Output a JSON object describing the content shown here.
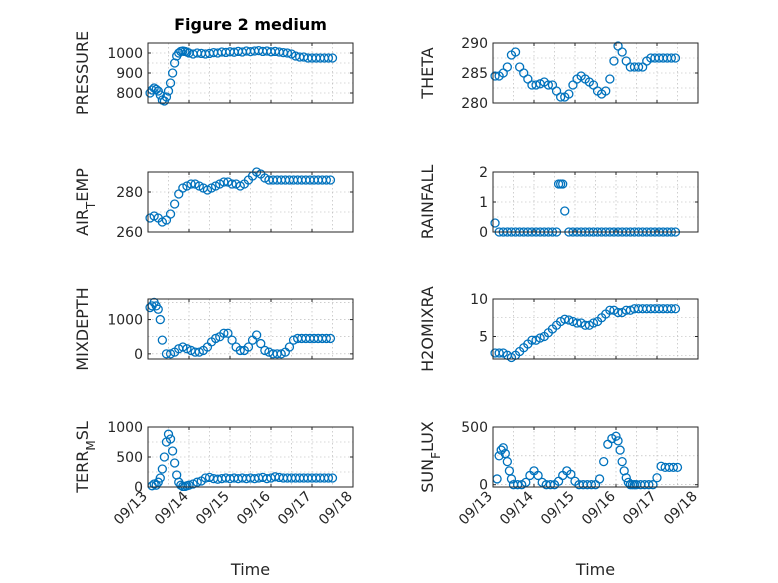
{
  "figure_title": "Figure 2 medium",
  "colors": {
    "marker": "#0072bd",
    "axis": "#262626",
    "grid": "#b0b0b0"
  },
  "chart_data": [
    {
      "type": "scatter",
      "title": "Figure 2 medium",
      "ylabel": "PRESSURE",
      "xlabel": "",
      "xlim": [
        0,
        5
      ],
      "ylim": [
        750,
        1050
      ],
      "yticks": [
        800,
        900,
        1000
      ],
      "ytick_labels": [
        "800",
        "900",
        "1000"
      ],
      "x": [
        0.05,
        0.1,
        0.15,
        0.2,
        0.25,
        0.3,
        0.35,
        0.4,
        0.45,
        0.5,
        0.55,
        0.6,
        0.65,
        0.7,
        0.75,
        0.8,
        0.85,
        0.9,
        0.95,
        1.0,
        1.1,
        1.2,
        1.3,
        1.4,
        1.5,
        1.6,
        1.7,
        1.8,
        1.9,
        2.0,
        2.1,
        2.2,
        2.3,
        2.4,
        2.5,
        2.6,
        2.7,
        2.8,
        2.9,
        3.0,
        3.1,
        3.2,
        3.3,
        3.4,
        3.5,
        3.6,
        3.7,
        3.8,
        3.9,
        4.0,
        4.1,
        4.2,
        4.3,
        4.4,
        4.5
      ],
      "y": [
        800,
        815,
        825,
        818,
        810,
        790,
        765,
        760,
        780,
        810,
        850,
        900,
        950,
        985,
        1000,
        1008,
        1010,
        1008,
        1005,
        1000,
        995,
        1000,
        998,
        995,
        998,
        1002,
        1000,
        1005,
        1003,
        1006,
        1004,
        1008,
        1005,
        1010,
        1007,
        1010,
        1012,
        1008,
        1010,
        1006,
        1008,
        1005,
        1002,
        1000,
        995,
        985,
        980,
        980,
        975,
        975,
        975,
        975,
        975,
        975,
        975
      ]
    },
    {
      "type": "scatter",
      "ylabel": "THETA",
      "xlabel": "",
      "xlim": [
        0,
        5
      ],
      "ylim": [
        280,
        290
      ],
      "yticks": [
        280,
        285,
        290
      ],
      "ytick_labels": [
        "280",
        "285",
        "290"
      ],
      "x": [
        0.05,
        0.15,
        0.25,
        0.35,
        0.45,
        0.55,
        0.65,
        0.75,
        0.85,
        0.95,
        1.05,
        1.15,
        1.25,
        1.35,
        1.45,
        1.55,
        1.65,
        1.75,
        1.85,
        1.95,
        2.05,
        2.15,
        2.25,
        2.35,
        2.45,
        2.55,
        2.65,
        2.75,
        2.85,
        2.95,
        3.05,
        3.15,
        3.25,
        3.35,
        3.45,
        3.55,
        3.65,
        3.75,
        3.85,
        3.95,
        4.05,
        4.15,
        4.25,
        4.35,
        4.45
      ],
      "y": [
        284.5,
        284.5,
        285,
        286,
        288,
        288.5,
        286,
        285,
        284,
        283,
        283,
        283.2,
        283.5,
        283,
        283,
        282,
        281,
        281,
        281.5,
        283,
        284,
        284.5,
        284,
        283.5,
        283,
        282,
        281.5,
        282,
        284,
        287,
        289.5,
        288.5,
        287,
        286,
        286,
        286,
        286,
        287,
        287.5,
        287.5,
        287.5,
        287.5,
        287.5,
        287.5,
        287.5
      ]
    },
    {
      "type": "scatter",
      "ylabel": "AIR_TEMP",
      "xlabel": "",
      "xlim": [
        0,
        5
      ],
      "ylim": [
        260,
        290
      ],
      "yticks": [
        260,
        280
      ],
      "ytick_labels": [
        "260",
        "280"
      ],
      "x": [
        0.05,
        0.15,
        0.25,
        0.35,
        0.45,
        0.55,
        0.65,
        0.75,
        0.85,
        0.95,
        1.05,
        1.15,
        1.25,
        1.35,
        1.45,
        1.55,
        1.65,
        1.75,
        1.85,
        1.95,
        2.05,
        2.15,
        2.25,
        2.35,
        2.45,
        2.55,
        2.65,
        2.75,
        2.85,
        2.95,
        3.05,
        3.15,
        3.25,
        3.35,
        3.45,
        3.55,
        3.65,
        3.75,
        3.85,
        3.95,
        4.05,
        4.15,
        4.25,
        4.35,
        4.45
      ],
      "y": [
        267,
        268,
        267,
        265,
        266,
        269,
        274,
        279,
        282,
        283,
        284,
        284,
        283,
        282,
        281,
        282,
        283,
        284,
        285,
        285,
        284,
        284,
        283,
        284,
        286,
        288,
        290,
        289,
        287,
        286,
        286,
        286,
        286,
        286,
        286,
        286,
        286,
        286,
        286,
        286,
        286,
        286,
        286,
        286,
        286
      ]
    },
    {
      "type": "scatter",
      "ylabel": "RAINFALL",
      "xlabel": "",
      "xlim": [
        0,
        5
      ],
      "ylim": [
        0,
        2
      ],
      "yticks": [
        0,
        1,
        2
      ],
      "ytick_labels": [
        "0",
        "1",
        "2"
      ],
      "x": [
        0.05,
        0.15,
        0.25,
        0.35,
        0.45,
        0.55,
        0.65,
        0.75,
        0.85,
        0.95,
        1.05,
        1.15,
        1.25,
        1.35,
        1.45,
        1.55,
        1.6,
        1.65,
        1.7,
        1.75,
        1.85,
        1.95,
        2.05,
        2.15,
        2.25,
        2.35,
        2.45,
        2.55,
        2.65,
        2.75,
        2.85,
        2.95,
        3.05,
        3.15,
        3.25,
        3.35,
        3.45,
        3.55,
        3.65,
        3.75,
        3.85,
        3.95,
        4.05,
        4.15,
        4.25,
        4.35,
        4.45
      ],
      "y": [
        0.3,
        0,
        0,
        0,
        0,
        0,
        0,
        0,
        0,
        0,
        0,
        0,
        0,
        0,
        0,
        0,
        1.6,
        1.6,
        1.6,
        0.7,
        0,
        0,
        0,
        0,
        0,
        0,
        0,
        0,
        0,
        0,
        0,
        0,
        0,
        0,
        0,
        0,
        0,
        0,
        0,
        0,
        0,
        0,
        0,
        0,
        0,
        0,
        0
      ]
    },
    {
      "type": "scatter",
      "ylabel": "MIXDEPTH",
      "xlabel": "",
      "xlim": [
        0,
        5
      ],
      "ylim": [
        -150,
        1600
      ],
      "yticks": [
        0,
        1000
      ],
      "ytick_labels": [
        "0",
        "1000"
      ],
      "x": [
        0.05,
        0.1,
        0.15,
        0.2,
        0.25,
        0.3,
        0.35,
        0.45,
        0.55,
        0.65,
        0.75,
        0.85,
        0.95,
        1.05,
        1.15,
        1.25,
        1.35,
        1.45,
        1.55,
        1.65,
        1.75,
        1.85,
        1.95,
        2.05,
        2.15,
        2.25,
        2.35,
        2.45,
        2.55,
        2.65,
        2.75,
        2.85,
        2.95,
        3.05,
        3.15,
        3.25,
        3.35,
        3.45,
        3.55,
        3.65,
        3.75,
        3.85,
        3.95,
        4.05,
        4.15,
        4.25,
        4.35,
        4.45
      ],
      "y": [
        1350,
        1400,
        1500,
        1400,
        1300,
        1000,
        400,
        0,
        0,
        50,
        150,
        200,
        150,
        100,
        50,
        50,
        100,
        200,
        350,
        450,
        500,
        600,
        600,
        400,
        200,
        100,
        100,
        200,
        400,
        550,
        300,
        100,
        50,
        0,
        0,
        0,
        50,
        200,
        400,
        450,
        450,
        450,
        450,
        450,
        450,
        450,
        450,
        450
      ]
    },
    {
      "type": "scatter",
      "ylabel": "H2OMIXRA",
      "xlabel": "",
      "xlim": [
        0,
        5
      ],
      "ylim": [
        2,
        10
      ],
      "yticks": [
        5,
        10
      ],
      "ytick_labels": [
        "5",
        "10"
      ],
      "x": [
        0.05,
        0.15,
        0.25,
        0.35,
        0.45,
        0.55,
        0.65,
        0.75,
        0.85,
        0.95,
        1.05,
        1.15,
        1.25,
        1.35,
        1.45,
        1.55,
        1.65,
        1.75,
        1.85,
        1.95,
        2.05,
        2.15,
        2.25,
        2.35,
        2.45,
        2.55,
        2.65,
        2.75,
        2.85,
        2.95,
        3.05,
        3.15,
        3.25,
        3.35,
        3.45,
        3.55,
        3.65,
        3.75,
        3.85,
        3.95,
        4.05,
        4.15,
        4.25,
        4.35,
        4.45
      ],
      "y": [
        2.8,
        2.8,
        2.8,
        2.5,
        2.2,
        2.5,
        3,
        3.5,
        4,
        4.5,
        4.5,
        4.8,
        5,
        5.5,
        6,
        6.5,
        7,
        7.3,
        7.2,
        7,
        6.8,
        6.8,
        6.5,
        6.5,
        6.8,
        7,
        7.5,
        8,
        8.5,
        8.5,
        8.2,
        8.2,
        8.5,
        8.5,
        8.7,
        8.7,
        8.7,
        8.7,
        8.7,
        8.7,
        8.7,
        8.7,
        8.7,
        8.7,
        8.7
      ]
    },
    {
      "type": "scatter",
      "ylabel": "TERR_MSL",
      "xlabel": "Time",
      "xlim": [
        0,
        5
      ],
      "ylim": [
        0,
        1000
      ],
      "yticks": [
        0,
        500,
        1000
      ],
      "ytick_labels": [
        "0",
        "500",
        "1000"
      ],
      "xticks": [
        0,
        1,
        2,
        3,
        4,
        5
      ],
      "xtick_labels": [
        "09/13",
        "09/14",
        "09/15",
        "09/16",
        "09/17",
        "09/18"
      ],
      "x": [
        0.1,
        0.15,
        0.2,
        0.25,
        0.3,
        0.35,
        0.4,
        0.45,
        0.5,
        0.55,
        0.6,
        0.65,
        0.7,
        0.75,
        0.8,
        0.85,
        0.9,
        0.95,
        1.0,
        1.1,
        1.2,
        1.3,
        1.4,
        1.5,
        1.6,
        1.7,
        1.8,
        1.9,
        2.0,
        2.1,
        2.2,
        2.3,
        2.4,
        2.5,
        2.6,
        2.7,
        2.8,
        2.9,
        3.0,
        3.1,
        3.2,
        3.3,
        3.4,
        3.5,
        3.6,
        3.7,
        3.8,
        3.9,
        4.0,
        4.1,
        4.2,
        4.3,
        4.4,
        4.5
      ],
      "y": [
        20,
        50,
        30,
        80,
        150,
        300,
        500,
        750,
        880,
        800,
        600,
        400,
        200,
        80,
        30,
        10,
        10,
        20,
        30,
        50,
        80,
        100,
        150,
        160,
        140,
        130,
        140,
        150,
        140,
        150,
        140,
        150,
        140,
        150,
        140,
        150,
        160,
        140,
        150,
        170,
        160,
        150,
        150,
        150,
        150,
        150,
        150,
        150,
        150,
        150,
        150,
        150,
        150,
        150
      ]
    },
    {
      "type": "scatter",
      "ylabel": "SUN_FLUX",
      "xlabel": "Time",
      "xlim": [
        0,
        5
      ],
      "ylim": [
        -20,
        500
      ],
      "yticks": [
        0,
        500
      ],
      "ytick_labels": [
        "0",
        "500"
      ],
      "xticks": [
        0,
        1,
        2,
        3,
        4,
        5
      ],
      "xtick_labels": [
        "09/13",
        "09/14",
        "09/15",
        "09/16",
        "09/17",
        "09/18"
      ],
      "x": [
        0.1,
        0.15,
        0.2,
        0.25,
        0.3,
        0.35,
        0.4,
        0.45,
        0.5,
        0.6,
        0.7,
        0.8,
        0.9,
        1.0,
        1.1,
        1.2,
        1.3,
        1.4,
        1.5,
        1.6,
        1.7,
        1.8,
        1.9,
        2.0,
        2.1,
        2.2,
        2.3,
        2.4,
        2.5,
        2.6,
        2.7,
        2.8,
        2.9,
        3.0,
        3.05,
        3.1,
        3.15,
        3.2,
        3.25,
        3.3,
        3.35,
        3.4,
        3.45,
        3.5,
        3.6,
        3.7,
        3.8,
        3.9,
        4.0,
        4.1,
        4.2,
        4.3,
        4.4,
        4.5
      ],
      "y": [
        50,
        250,
        300,
        320,
        270,
        200,
        120,
        50,
        0,
        0,
        0,
        20,
        80,
        120,
        80,
        20,
        0,
        0,
        0,
        30,
        80,
        120,
        90,
        30,
        0,
        0,
        0,
        0,
        0,
        50,
        200,
        350,
        400,
        420,
        380,
        300,
        200,
        120,
        60,
        20,
        0,
        0,
        0,
        0,
        0,
        0,
        0,
        0,
        60,
        160,
        150,
        150,
        150,
        150
      ]
    }
  ]
}
